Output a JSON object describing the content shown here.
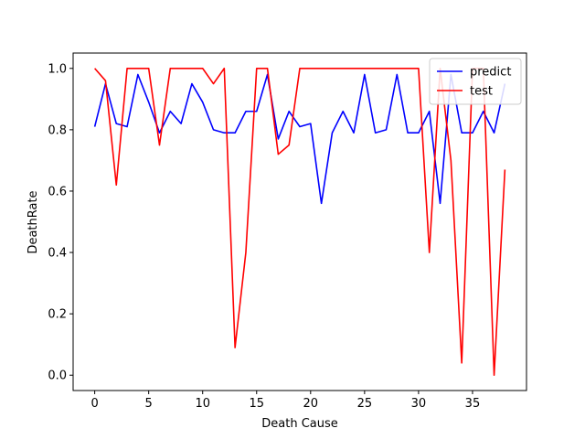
{
  "chart_data": {
    "type": "line",
    "xlabel": "Death Cause",
    "ylabel": "DeathRate",
    "xlim": [
      -2,
      40
    ],
    "ylim": [
      -0.05,
      1.05
    ],
    "xticks": [
      0,
      5,
      10,
      15,
      20,
      25,
      30,
      35
    ],
    "yticks": [
      0.0,
      0.2,
      0.4,
      0.6,
      0.8,
      1.0
    ],
    "xtick_labels": [
      "0",
      "5",
      "10",
      "15",
      "20",
      "25",
      "30",
      "35"
    ],
    "ytick_labels": [
      "0.0",
      "0.2",
      "0.4",
      "0.6",
      "0.8",
      "1.0"
    ],
    "grid": false,
    "legend_position": "top-right",
    "x": [
      0,
      1,
      2,
      3,
      4,
      5,
      6,
      7,
      8,
      9,
      10,
      11,
      12,
      13,
      14,
      15,
      16,
      17,
      18,
      19,
      20,
      21,
      22,
      23,
      24,
      25,
      26,
      27,
      28,
      29,
      30,
      31,
      32,
      33,
      34,
      35,
      36,
      37,
      38
    ],
    "series": [
      {
        "name": "predict",
        "color": "#0000ff",
        "values": [
          0.81,
          0.95,
          0.82,
          0.81,
          0.98,
          0.89,
          0.79,
          0.86,
          0.82,
          0.95,
          0.89,
          0.8,
          0.79,
          0.79,
          0.86,
          0.86,
          0.98,
          0.77,
          0.86,
          0.81,
          0.82,
          0.56,
          0.79,
          0.86,
          0.79,
          0.98,
          0.79,
          0.8,
          0.98,
          0.79,
          0.79,
          0.86,
          0.56,
          0.98,
          0.79,
          0.79,
          0.86,
          0.79,
          0.95
        ]
      },
      {
        "name": "test",
        "color": "#ff0000",
        "values": [
          1.0,
          0.96,
          0.62,
          1.0,
          1.0,
          1.0,
          0.75,
          1.0,
          1.0,
          1.0,
          1.0,
          0.95,
          1.0,
          0.09,
          0.4,
          1.0,
          1.0,
          0.72,
          0.75,
          1.0,
          1.0,
          1.0,
          1.0,
          1.0,
          1.0,
          1.0,
          1.0,
          1.0,
          1.0,
          1.0,
          1.0,
          0.4,
          1.0,
          0.7,
          0.04,
          1.0,
          1.0,
          0.0,
          0.67
        ]
      }
    ]
  }
}
